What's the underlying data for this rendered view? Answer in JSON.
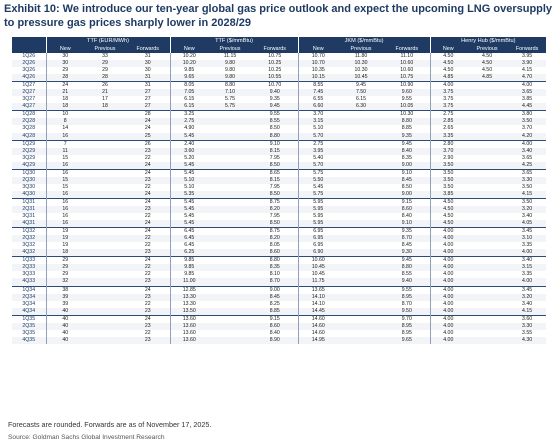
{
  "title": "Exhibit 10: We introduce our ten-year global gas price outlook and expect the upcoming LNG oversupply to pressure gas prices sharply lower in 2028/29",
  "table": {
    "groups": [
      "TTF (EUR/MWh)",
      "TTF ($/mmBtu)",
      "JKM ($/mmBtu)",
      "Henry Hub ($/mmBtu)"
    ],
    "subheaders": [
      "New",
      "Previous",
      "Forwards",
      "New",
      "Previous",
      "Forwards",
      "New",
      "Previous",
      "Forwards",
      "New",
      "Previous",
      "Forwards"
    ],
    "rows": [
      [
        "1Q26",
        "30",
        "33",
        "31",
        "10.20",
        "11.15",
        "10.75",
        "10.70",
        "11.80",
        "11.10",
        "4.50",
        "4.50",
        "3.95"
      ],
      [
        "2Q26",
        "30",
        "29",
        "30",
        "10.20",
        "9.80",
        "10.25",
        "10.70",
        "10.30",
        "10.60",
        "4.50",
        "4.50",
        "3.90"
      ],
      [
        "3Q26",
        "29",
        "29",
        "30",
        "9.85",
        "9.80",
        "10.25",
        "10.35",
        "10.30",
        "10.60",
        "4.50",
        "4.50",
        "4.15"
      ],
      [
        "4Q26",
        "28",
        "28",
        "31",
        "9.65",
        "9.80",
        "10.55",
        "10.15",
        "10.45",
        "10.75",
        "4.85",
        "4.85",
        "4.70"
      ],
      [
        "1Q27",
        "24",
        "26",
        "31",
        "8.05",
        "8.80",
        "10.70",
        "8.55",
        "9.45",
        "10.90",
        "4.00",
        "",
        "4.00"
      ],
      [
        "2Q27",
        "21",
        "21",
        "27",
        "7.05",
        "7.10",
        "9.40",
        "7.45",
        "7.50",
        "9.60",
        "3.75",
        "",
        "3.65"
      ],
      [
        "3Q27",
        "18",
        "17",
        "27",
        "6.15",
        "5.75",
        "9.35",
        "6.55",
        "6.15",
        "9.55",
        "3.75",
        "",
        "3.85"
      ],
      [
        "4Q27",
        "18",
        "18",
        "27",
        "6.15",
        "5.75",
        "9.45",
        "6.60",
        "6.30",
        "10.05",
        "3.75",
        "",
        "4.45"
      ],
      [
        "1Q28",
        "10",
        "",
        "28",
        "3.25",
        "",
        "9.55",
        "3.70",
        "",
        "10.30",
        "2.75",
        "",
        "3.80"
      ],
      [
        "2Q28",
        "8",
        "",
        "24",
        "2.75",
        "",
        "8.55",
        "3.15",
        "",
        "8.80",
        "2.85",
        "",
        "3.50"
      ],
      [
        "3Q28",
        "14",
        "",
        "24",
        "4.90",
        "",
        "8.50",
        "5.10",
        "",
        "8.85",
        "2.65",
        "",
        "3.70"
      ],
      [
        "4Q28",
        "16",
        "",
        "25",
        "5.45",
        "",
        "8.80",
        "5.70",
        "",
        "9.35",
        "3.35",
        "",
        "4.20"
      ],
      [
        "1Q29",
        "7",
        "",
        "26",
        "2.40",
        "",
        "9.10",
        "2.75",
        "",
        "9.45",
        "2.80",
        "",
        "4.00"
      ],
      [
        "2Q29",
        "11",
        "",
        "23",
        "3.60",
        "",
        "8.15",
        "3.95",
        "",
        "8.40",
        "3.70",
        "",
        "3.40"
      ],
      [
        "3Q29",
        "15",
        "",
        "22",
        "5.20",
        "",
        "7.95",
        "5.40",
        "",
        "8.35",
        "2.90",
        "",
        "3.65"
      ],
      [
        "4Q29",
        "16",
        "",
        "24",
        "5.45",
        "",
        "8.50",
        "5.70",
        "",
        "9.00",
        "3.50",
        "",
        "4.25"
      ],
      [
        "1Q30",
        "16",
        "",
        "24",
        "5.45",
        "",
        "8.65",
        "5.75",
        "",
        "9.10",
        "3.50",
        "",
        "3.65"
      ],
      [
        "2Q30",
        "15",
        "",
        "23",
        "5.10",
        "",
        "8.15",
        "5.50",
        "",
        "8.45",
        "3.50",
        "",
        "3.30"
      ],
      [
        "3Q30",
        "15",
        "",
        "22",
        "5.10",
        "",
        "7.95",
        "5.45",
        "",
        "8.50",
        "3.50",
        "",
        "3.50"
      ],
      [
        "4Q30",
        "16",
        "",
        "24",
        "5.35",
        "",
        "8.50",
        "5.75",
        "",
        "9.00",
        "3.85",
        "",
        "4.15"
      ],
      [
        "1Q31",
        "16",
        "",
        "24",
        "5.45",
        "",
        "8.75",
        "5.95",
        "",
        "9.15",
        "4.50",
        "",
        "3.50"
      ],
      [
        "2Q31",
        "16",
        "",
        "23",
        "5.45",
        "",
        "8.20",
        "5.95",
        "",
        "8.60",
        "4.50",
        "",
        "3.20"
      ],
      [
        "3Q31",
        "16",
        "",
        "22",
        "5.45",
        "",
        "7.95",
        "5.95",
        "",
        "8.40",
        "4.50",
        "",
        "3.40"
      ],
      [
        "4Q31",
        "16",
        "",
        "24",
        "5.45",
        "",
        "8.50",
        "5.95",
        "",
        "9.10",
        "4.50",
        "",
        "4.05"
      ],
      [
        "1Q32",
        "19",
        "",
        "24",
        "6.45",
        "",
        "8.75",
        "6.95",
        "",
        "9.35",
        "4.00",
        "",
        "3.45"
      ],
      [
        "2Q32",
        "19",
        "",
        "22",
        "6.45",
        "",
        "8.20",
        "6.95",
        "",
        "8.70",
        "4.00",
        "",
        "3.10"
      ],
      [
        "3Q32",
        "19",
        "",
        "22",
        "6.45",
        "",
        "8.05",
        "6.95",
        "",
        "8.45",
        "4.00",
        "",
        "3.35"
      ],
      [
        "4Q32",
        "18",
        "",
        "23",
        "6.25",
        "",
        "8.60",
        "6.90",
        "",
        "9.30",
        "4.00",
        "",
        "4.00"
      ],
      [
        "1Q33",
        "29",
        "",
        "24",
        "9.85",
        "",
        "8.80",
        "10.60",
        "",
        "9.45",
        "4.00",
        "",
        "3.40"
      ],
      [
        "2Q33",
        "29",
        "",
        "22",
        "9.85",
        "",
        "8.35",
        "10.45",
        "",
        "8.80",
        "4.00",
        "",
        "3.15"
      ],
      [
        "3Q33",
        "29",
        "",
        "22",
        "9.85",
        "",
        "8.10",
        "10.45",
        "",
        "8.55",
        "4.00",
        "",
        "3.35"
      ],
      [
        "4Q33",
        "32",
        "",
        "23",
        "11.00",
        "",
        "8.70",
        "11.75",
        "",
        "9.40",
        "4.00",
        "",
        "4.00"
      ],
      [
        "1Q34",
        "38",
        "",
        "24",
        "12.85",
        "",
        "9.00",
        "13.65",
        "",
        "9.55",
        "4.00",
        "",
        "3.45"
      ],
      [
        "2Q34",
        "39",
        "",
        "23",
        "13.30",
        "",
        "8.45",
        "14.10",
        "",
        "8.95",
        "4.00",
        "",
        "3.20"
      ],
      [
        "3Q34",
        "39",
        "",
        "22",
        "13.30",
        "",
        "8.25",
        "14.10",
        "",
        "8.70",
        "4.00",
        "",
        "3.40"
      ],
      [
        "4Q34",
        "40",
        "",
        "23",
        "13.50",
        "",
        "8.85",
        "14.45",
        "",
        "9.50",
        "4.00",
        "",
        "4.15"
      ],
      [
        "1Q35",
        "40",
        "",
        "24",
        "13.60",
        "",
        "9.15",
        "14.60",
        "",
        "9.70",
        "4.00",
        "",
        "3.60"
      ],
      [
        "2Q35",
        "40",
        "",
        "23",
        "13.60",
        "",
        "8.60",
        "14.60",
        "",
        "8.95",
        "4.00",
        "",
        "3.30"
      ],
      [
        "3Q35",
        "40",
        "",
        "22",
        "13.60",
        "",
        "8.40",
        "14.60",
        "",
        "8.95",
        "4.00",
        "",
        "3.55"
      ],
      [
        "4Q35",
        "40",
        "",
        "23",
        "13.60",
        "",
        "8.90",
        "14.95",
        "",
        "9.65",
        "4.00",
        "",
        "4.30"
      ]
    ]
  },
  "footnote": "Forecasts are rounded. Forwards are as of November 17, 2025.",
  "source": "Source: Goldman Sachs Global Investment Research",
  "colors": {
    "header_bg": "#1f3b63",
    "title": "#1f3b63",
    "alt_row": "#f2f4f8"
  }
}
